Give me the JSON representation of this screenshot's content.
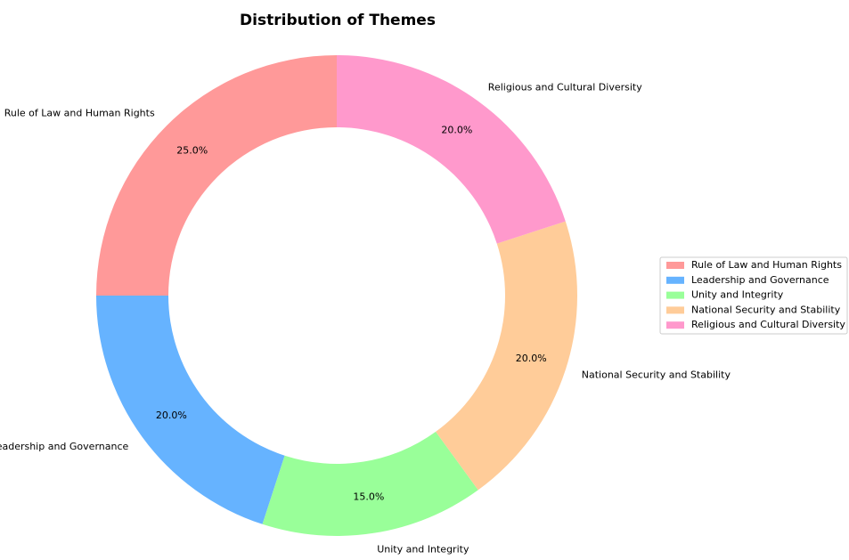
{
  "chart_data": {
    "type": "donut",
    "title": "Distribution of Themes",
    "categories": [
      "Rule of Law and Human Rights",
      "Leadership and Governance",
      "Unity and Integrity",
      "National Security and Stability",
      "Religious and Cultural Diversity"
    ],
    "values": [
      25,
      20,
      15,
      20,
      20
    ],
    "value_labels": [
      "25.0%",
      "20.0%",
      "15.0%",
      "20.0%",
      "20.0%"
    ],
    "colors": [
      "#ff9999",
      "#66b3ff",
      "#99ff99",
      "#ffcc99",
      "#ff99cc"
    ],
    "legend": "right"
  }
}
